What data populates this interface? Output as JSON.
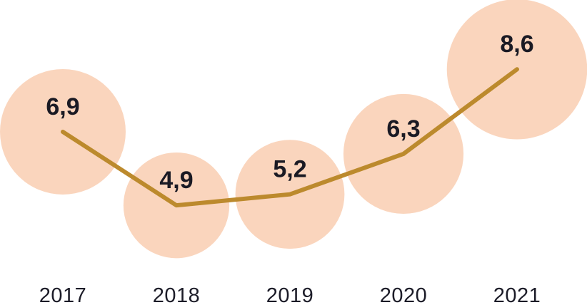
{
  "chart_data": {
    "type": "line",
    "marker_style": "bubble",
    "categories": [
      "2017",
      "2018",
      "2019",
      "2020",
      "2021"
    ],
    "values": [
      6.9,
      4.9,
      5.2,
      6.3,
      8.6
    ],
    "value_labels": [
      "6,9",
      "4,9",
      "5,2",
      "6,3",
      "8,6"
    ],
    "title": "",
    "xlabel": "",
    "ylabel": "",
    "ylim": [
      4.0,
      9.0
    ],
    "grid": false,
    "legend": false,
    "bubble_sizing": "radius proportional to sqrt(value)",
    "decimal_separator": ",",
    "colors": {
      "bubble": "#fad5bd",
      "line": "#bc8a2d",
      "value_text": "#1a1a24",
      "axis_text": "#1c1c28",
      "background": "#ffffff"
    }
  }
}
